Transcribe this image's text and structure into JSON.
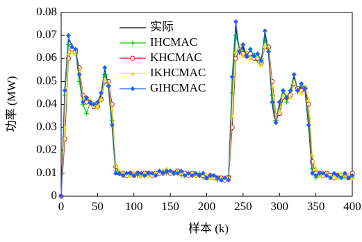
{
  "chart_data": {
    "type": "line",
    "xlabel": "样本 (k)",
    "ylabel": "功率 (MW)",
    "xlim": [
      0,
      400
    ],
    "xticks": [
      0,
      50,
      100,
      150,
      200,
      250,
      300,
      350,
      400
    ],
    "ylim": [
      0,
      0.08
    ],
    "yticks": [
      0,
      0.01,
      0.02,
      0.03,
      0.04,
      0.05,
      0.06,
      0.07,
      0.08
    ],
    "x": [
      0,
      5,
      10,
      15,
      20,
      25,
      30,
      35,
      40,
      45,
      50,
      55,
      60,
      65,
      70,
      75,
      80,
      85,
      90,
      95,
      100,
      105,
      110,
      115,
      120,
      125,
      130,
      135,
      140,
      145,
      150,
      155,
      160,
      165,
      170,
      175,
      180,
      185,
      190,
      195,
      200,
      205,
      210,
      215,
      220,
      225,
      230,
      235,
      240,
      245,
      250,
      255,
      260,
      265,
      270,
      275,
      280,
      285,
      290,
      295,
      300,
      305,
      310,
      315,
      320,
      325,
      330,
      335,
      340,
      345,
      350,
      355,
      360,
      365,
      370,
      375,
      380,
      385,
      390,
      395,
      400
    ],
    "series": [
      {
        "name": "实际",
        "color": "#000000",
        "marker": "none",
        "values": [
          0,
          0.047,
          0.068,
          0.066,
          0.063,
          0.052,
          0.041,
          0.042,
          0.04,
          0.039,
          0.04,
          0.044,
          0.055,
          0.047,
          0.03,
          0.01,
          0.009,
          0.01,
          0.009,
          0.01,
          0.009,
          0.01,
          0.009,
          0.01,
          0.009,
          0.01,
          0.009,
          0.011,
          0.01,
          0.011,
          0.01,
          0.011,
          0.01,
          0.01,
          0.009,
          0.01,
          0.009,
          0.01,
          0.009,
          0.009,
          0.008,
          0.009,
          0.008,
          0.008,
          0.007,
          0.008,
          0.008,
          0.05,
          0.074,
          0.062,
          0.065,
          0.06,
          0.063,
          0.06,
          0.061,
          0.058,
          0.071,
          0.062,
          0.04,
          0.031,
          0.04,
          0.045,
          0.042,
          0.045,
          0.052,
          0.045,
          0.048,
          0.046,
          0.03,
          0.01,
          0.009,
          0.01,
          0.009,
          0.01,
          0.008,
          0.009,
          0.01,
          0.008,
          0.009,
          0.008,
          0.009
        ]
      },
      {
        "name": "IHCMAC",
        "color": "#00cc00",
        "marker": "plus",
        "values": [
          0,
          0.044,
          0.066,
          0.064,
          0.062,
          0.05,
          0.04,
          0.036,
          0.041,
          0.04,
          0.039,
          0.043,
          0.053,
          0.048,
          0.033,
          0.011,
          0.01,
          0.009,
          0.01,
          0.009,
          0.01,
          0.009,
          0.01,
          0.009,
          0.01,
          0.009,
          0.01,
          0.01,
          0.011,
          0.01,
          0.011,
          0.01,
          0.011,
          0.009,
          0.01,
          0.009,
          0.01,
          0.009,
          0.01,
          0.008,
          0.009,
          0.008,
          0.009,
          0.007,
          0.008,
          0.007,
          0.009,
          0.045,
          0.07,
          0.064,
          0.063,
          0.062,
          0.061,
          0.062,
          0.059,
          0.06,
          0.068,
          0.064,
          0.044,
          0.033,
          0.038,
          0.046,
          0.041,
          0.046,
          0.05,
          0.046,
          0.047,
          0.047,
          0.034,
          0.012,
          0.008,
          0.009,
          0.01,
          0.009,
          0.009,
          0.008,
          0.009,
          0.009,
          0.008,
          0.009,
          0.008
        ]
      },
      {
        "name": "KHCMAC",
        "color": "#e00000",
        "marker": "circle",
        "values": [
          0,
          0.025,
          0.06,
          0.064,
          0.063,
          0.056,
          0.044,
          0.041,
          0.041,
          0.039,
          0.039,
          0.042,
          0.05,
          0.05,
          0.04,
          0.013,
          0.01,
          0.01,
          0.009,
          0.01,
          0.009,
          0.01,
          0.009,
          0.01,
          0.01,
          0.009,
          0.01,
          0.01,
          0.01,
          0.011,
          0.01,
          0.01,
          0.011,
          0.01,
          0.01,
          0.009,
          0.01,
          0.009,
          0.009,
          0.009,
          0.008,
          0.009,
          0.008,
          0.008,
          0.008,
          0.007,
          0.008,
          0.03,
          0.06,
          0.064,
          0.062,
          0.061,
          0.062,
          0.06,
          0.06,
          0.058,
          0.065,
          0.065,
          0.05,
          0.035,
          0.036,
          0.043,
          0.043,
          0.044,
          0.049,
          0.047,
          0.046,
          0.047,
          0.04,
          0.015,
          0.01,
          0.01,
          0.009,
          0.01,
          0.009,
          0.008,
          0.009,
          0.009,
          0.009,
          0.008,
          0.01
        ]
      },
      {
        "name": "IKHCMAC",
        "color": "#e8e800",
        "marker": "triangle",
        "values": [
          0,
          0.03,
          0.062,
          0.063,
          0.062,
          0.055,
          0.043,
          0.043,
          0.042,
          0.04,
          0.039,
          0.042,
          0.051,
          0.049,
          0.038,
          0.014,
          0.011,
          0.01,
          0.01,
          0.009,
          0.01,
          0.01,
          0.009,
          0.01,
          0.009,
          0.01,
          0.01,
          0.011,
          0.01,
          0.012,
          0.011,
          0.01,
          0.011,
          0.01,
          0.009,
          0.01,
          0.01,
          0.009,
          0.009,
          0.01,
          0.009,
          0.008,
          0.009,
          0.008,
          0.008,
          0.008,
          0.008,
          0.035,
          0.063,
          0.066,
          0.061,
          0.063,
          0.06,
          0.061,
          0.061,
          0.057,
          0.066,
          0.064,
          0.048,
          0.034,
          0.037,
          0.044,
          0.044,
          0.043,
          0.05,
          0.046,
          0.045,
          0.048,
          0.042,
          0.018,
          0.012,
          0.009,
          0.01,
          0.01,
          0.008,
          0.009,
          0.008,
          0.01,
          0.009,
          0.009,
          0.008
        ]
      },
      {
        "name": "GIHCMAC",
        "color": "#1f5fff",
        "marker": "diamond",
        "values": [
          0,
          0.046,
          0.07,
          0.065,
          0.064,
          0.053,
          0.041,
          0.043,
          0.041,
          0.04,
          0.041,
          0.045,
          0.056,
          0.048,
          0.031,
          0.01,
          0.01,
          0.009,
          0.01,
          0.01,
          0.009,
          0.01,
          0.01,
          0.009,
          0.01,
          0.01,
          0.009,
          0.011,
          0.01,
          0.011,
          0.011,
          0.01,
          0.01,
          0.011,
          0.009,
          0.01,
          0.009,
          0.01,
          0.009,
          0.01,
          0.008,
          0.009,
          0.009,
          0.008,
          0.007,
          0.008,
          0.007,
          0.052,
          0.076,
          0.063,
          0.066,
          0.061,
          0.064,
          0.061,
          0.062,
          0.059,
          0.072,
          0.063,
          0.041,
          0.032,
          0.041,
          0.046,
          0.043,
          0.046,
          0.053,
          0.046,
          0.049,
          0.047,
          0.031,
          0.01,
          0.009,
          0.01,
          0.01,
          0.009,
          0.008,
          0.01,
          0.009,
          0.008,
          0.01,
          0.008,
          0.009
        ]
      }
    ]
  }
}
